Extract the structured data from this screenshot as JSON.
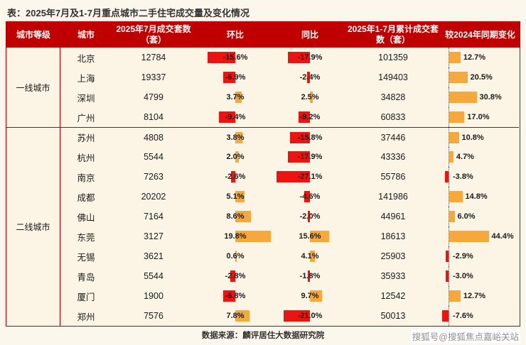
{
  "title": "表：2025年7月及1-7月重点城市二手住宅成交量及变化情况",
  "source": "数据来源：麟评居住大数据研究院",
  "watermark": "搜狐号@搜狐焦点嘉峪关站",
  "colors": {
    "header_red": "#C00000",
    "border_red": "#C00000",
    "negative_red": "#EC1410",
    "positive_orange": "#F5A83B",
    "body_cream": "#FCF5E6",
    "page_cream": "#FCF7EC",
    "watermark_gray": "#8F8F8F"
  },
  "chart_data": {
    "type": "table",
    "title": "2025年7月及1-7月重点城市二手住宅成交量及变化情况",
    "columns": [
      "城市等级",
      "城市",
      "2025年7月成交套数（套）",
      "环比",
      "同比",
      "2025年1-7月累计成交套数（套）",
      "较2024年同期变化"
    ],
    "tiers": [
      {
        "label": "一线城市",
        "span": 4
      },
      {
        "label": "二线城市",
        "span": 10
      }
    ],
    "rows": [
      {
        "city": "北京",
        "july": "12784",
        "mom": "-15.6%",
        "yoy": "-17.9%",
        "cum": "101359",
        "vs": "12.7%"
      },
      {
        "city": "上海",
        "july": "19337",
        "mom": "-6.9%",
        "yoy": "-2.4%",
        "cum": "149403",
        "vs": "20.5%"
      },
      {
        "city": "深圳",
        "july": "4799",
        "mom": "3.7%",
        "yoy": "2.5%",
        "cum": "34828",
        "vs": "30.8%"
      },
      {
        "city": "广州",
        "july": "8104",
        "mom": "-9.4%",
        "yoy": "-9.2%",
        "cum": "60833",
        "vs": "17.0%"
      },
      {
        "city": "苏州",
        "july": "4808",
        "mom": "3.8%",
        "yoy": "-15.8%",
        "cum": "37446",
        "vs": "10.8%"
      },
      {
        "city": "杭州",
        "july": "5544",
        "mom": "2.0%",
        "yoy": "-17.9%",
        "cum": "43336",
        "vs": "4.7%"
      },
      {
        "city": "南京",
        "july": "7263",
        "mom": "-2.6%",
        "yoy": "-27.1%",
        "cum": "55786",
        "vs": "-3.8%"
      },
      {
        "city": "成都",
        "july": "20202",
        "mom": "5.1%",
        "yoy": "-4.6%",
        "cum": "141986",
        "vs": "14.8%"
      },
      {
        "city": "佛山",
        "july": "7164",
        "mom": "8.6%",
        "yoy": "-2.0%",
        "cum": "44961",
        "vs": "6.0%"
      },
      {
        "city": "东莞",
        "july": "3127",
        "mom": "19.8%",
        "yoy": "15.6%",
        "cum": "18613",
        "vs": "44.4%"
      },
      {
        "city": "无锡",
        "july": "3621",
        "mom": "0.6%",
        "yoy": "4.1%",
        "cum": "25903",
        "vs": "-2.9%"
      },
      {
        "city": "青岛",
        "july": "5544",
        "mom": "-2.8%",
        "yoy": "-1.8%",
        "cum": "35933",
        "vs": "-3.0%"
      },
      {
        "city": "厦门",
        "july": "1900",
        "mom": "-6.8%",
        "yoy": "9.7%",
        "cum": "12542",
        "vs": "12.7%"
      },
      {
        "city": "郑州",
        "july": "7576",
        "mom": "7.8%",
        "yoy": "-21.0%",
        "cum": "50013",
        "vs": "-7.6%"
      }
    ],
    "layout": {
      "bar_axis_mom_yoy": "column-center",
      "bar_axis_vs2024": "dotted-left-axis",
      "negative_bars": "red-extend-left",
      "positive_bars": "orange-extend-right"
    }
  }
}
